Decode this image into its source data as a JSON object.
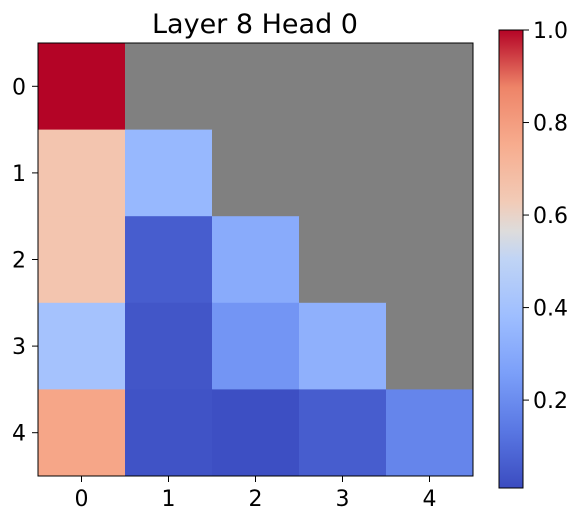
{
  "chart_data": {
    "type": "heatmap",
    "title": "Layer 8 Head 0",
    "xlabel": "",
    "ylabel": "",
    "x_ticks": [
      "0",
      "1",
      "2",
      "3",
      "4"
    ],
    "y_ticks": [
      "0",
      "1",
      "2",
      "3",
      "4"
    ],
    "matrix": [
      [
        1.0,
        null,
        null,
        null,
        null
      ],
      [
        0.65,
        0.35,
        null,
        null,
        null
      ],
      [
        0.65,
        0.05,
        0.3,
        null,
        null
      ],
      [
        0.4,
        0.03,
        0.22,
        0.32,
        null
      ],
      [
        0.77,
        0.02,
        0.01,
        0.05,
        0.17
      ]
    ],
    "masked_color": "#808080",
    "colormap": "coolwarm",
    "vmin": 0.0,
    "vmax": 1.0,
    "colorbar": {
      "ticks": [
        0.2,
        0.4,
        0.6,
        0.8,
        1.0
      ],
      "tick_labels": [
        "0.2",
        "0.4",
        "0.6",
        "0.8",
        "1.0"
      ]
    },
    "grid": false
  }
}
